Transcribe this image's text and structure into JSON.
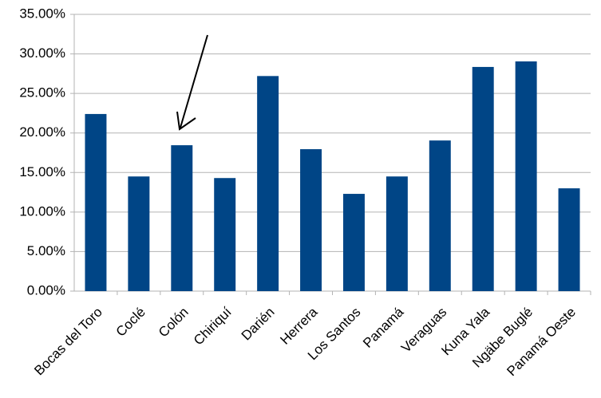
{
  "chart_data": {
    "type": "bar",
    "categories": [
      "Bocas del Toro",
      "Coclé",
      "Colón",
      "Chiriquí",
      "Darién",
      "Herrera",
      "Los Santos",
      "Panamá",
      "Veraguas",
      "Kuna Yala",
      "Ngäbe Buglé",
      "Panamá Oeste"
    ],
    "values": [
      22.4,
      14.5,
      18.45,
      14.3,
      27.2,
      17.95,
      12.3,
      14.5,
      19.05,
      28.35,
      29.05,
      13.0
    ],
    "color": "#004586",
    "ylim": [
      0,
      35
    ],
    "yticks": [
      {
        "value": 0,
        "label": "0.00%"
      },
      {
        "value": 5,
        "label": "5.00%"
      },
      {
        "value": 10,
        "label": "10.00%"
      },
      {
        "value": 15,
        "label": "15.00%"
      },
      {
        "value": 20,
        "label": "20.00%"
      },
      {
        "value": 25,
        "label": "25.00%"
      },
      {
        "value": 30,
        "label": "30.00%"
      },
      {
        "value": 35,
        "label": "35.00%"
      }
    ],
    "grid": true
  }
}
